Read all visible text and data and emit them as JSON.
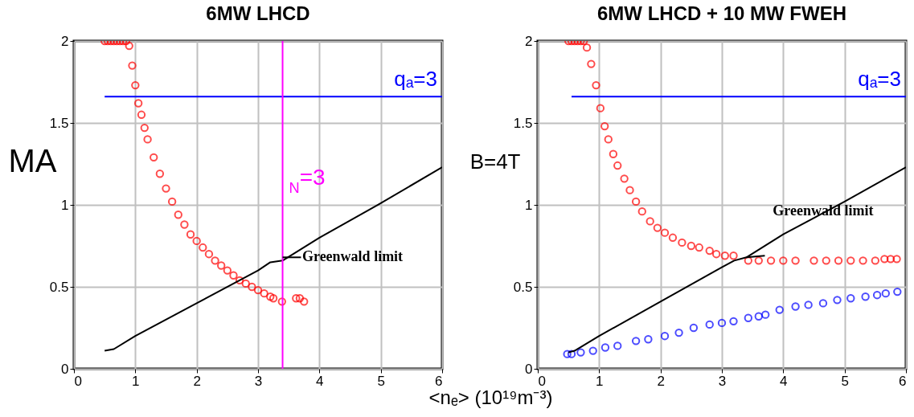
{
  "chart_data": [
    {
      "type": "scatter",
      "title": "6MW LHCD",
      "xlabel": "<nₑ> (10¹⁹m⁻³)",
      "ylabel": "MA",
      "xlim": [
        0,
        6
      ],
      "ylim": [
        0,
        2
      ],
      "xticks": [
        0,
        1,
        2,
        3,
        4,
        5,
        6
      ],
      "yticks": [
        0,
        0.5,
        1,
        1.5,
        2
      ],
      "grid": true,
      "series": [
        {
          "color": "#ff0000",
          "marker": "circle",
          "x": [
            0.5,
            0.55,
            0.6,
            0.65,
            0.7,
            0.75,
            0.8,
            0.85,
            0.9,
            0.95,
            1.0,
            1.05,
            1.1,
            1.15,
            1.2,
            1.3,
            1.4,
            1.5,
            1.6,
            1.7,
            1.8,
            1.9,
            2.0,
            2.1,
            2.2,
            2.3,
            2.4,
            2.5,
            2.6,
            2.7,
            2.8,
            2.9,
            3.0,
            3.1,
            3.2,
            3.25,
            3.39,
            3.62,
            3.68,
            3.75
          ],
          "values": [
            2,
            2,
            2,
            2,
            2,
            2,
            2,
            2,
            1.97,
            1.85,
            1.73,
            1.62,
            1.55,
            1.47,
            1.4,
            1.29,
            1.19,
            1.1,
            1.02,
            0.94,
            0.88,
            0.82,
            0.78,
            0.74,
            0.7,
            0.66,
            0.63,
            0.6,
            0.57,
            0.54,
            0.52,
            0.5,
            0.48,
            0.46,
            0.44,
            0.43,
            0.41,
            0.43,
            0.43,
            0.41
          ]
        },
        {
          "type": "line",
          "name": "qₐ=3",
          "color": "#0000ff",
          "marker": "none",
          "x": [
            0.5,
            6
          ],
          "values": [
            1.66,
            1.66
          ]
        },
        {
          "type": "line",
          "color": "#000000",
          "marker": "none",
          "x": [
            0.5,
            0.65,
            1,
            2,
            3,
            3.2,
            3.4,
            4,
            5,
            6
          ],
          "values": [
            0.11,
            0.12,
            0.2,
            0.4,
            0.6,
            0.65,
            0.66,
            0.8,
            1.01,
            1.23
          ]
        }
      ],
      "ref_lines": [
        {
          "axis": "x",
          "value": 3.4,
          "label": "$_{N}$=3",
          "color": "#ff00ff"
        }
      ],
      "annotations": [
        {
          "text": "Greenwald limit",
          "x": 3.4,
          "y": 0.68
        }
      ]
    },
    {
      "type": "scatter",
      "title": "6MW LHCD + 10 MW FWEH",
      "ylabel": "B=4T",
      "xlim": [
        0,
        6
      ],
      "ylim": [
        0,
        2
      ],
      "xticks": [
        0,
        1,
        2,
        3,
        4,
        5,
        6
      ],
      "yticks": [
        0,
        0.5,
        1,
        1.5,
        2
      ],
      "grid": true,
      "series": [
        {
          "color": "#ff0000",
          "marker": "circle",
          "x": [
            0.5,
            0.55,
            0.6,
            0.65,
            0.7,
            0.75,
            0.8,
            0.87,
            0.95,
            1.02,
            1.09,
            1.15,
            1.23,
            1.3,
            1.41,
            1.5,
            1.6,
            1.7,
            1.83,
            1.95,
            2.07,
            2.2,
            2.35,
            2.5,
            2.63,
            2.8,
            2.91,
            3.05,
            3.19,
            3.43,
            3.6,
            3.8,
            4.0,
            4.2,
            4.5,
            4.7,
            4.9,
            5.1,
            5.3,
            5.5,
            5.65,
            5.75,
            5.85
          ],
          "values": [
            2,
            2,
            2,
            2,
            2,
            2,
            1.96,
            1.86,
            1.73,
            1.59,
            1.48,
            1.4,
            1.31,
            1.24,
            1.16,
            1.09,
            1.02,
            0.96,
            0.9,
            0.86,
            0.83,
            0.8,
            0.77,
            0.75,
            0.74,
            0.72,
            0.7,
            0.69,
            0.69,
            0.66,
            0.66,
            0.66,
            0.66,
            0.66,
            0.66,
            0.66,
            0.66,
            0.66,
            0.66,
            0.66,
            0.67,
            0.67,
            0.67
          ]
        },
        {
          "color": "#0000ff",
          "marker": "circle",
          "x": [
            0.48,
            0.55,
            0.7,
            0.9,
            1.1,
            1.3,
            1.6,
            1.8,
            2.07,
            2.3,
            2.54,
            2.8,
            3.0,
            3.19,
            3.43,
            3.6,
            3.71,
            3.94,
            4.2,
            4.41,
            4.65,
            4.88,
            5.1,
            5.34,
            5.53,
            5.67,
            5.86
          ],
          "values": [
            0.09,
            0.09,
            0.1,
            0.11,
            0.13,
            0.14,
            0.17,
            0.18,
            0.2,
            0.22,
            0.25,
            0.27,
            0.28,
            0.29,
            0.31,
            0.32,
            0.33,
            0.36,
            0.38,
            0.39,
            0.4,
            0.42,
            0.43,
            0.44,
            0.45,
            0.46,
            0.47
          ]
        },
        {
          "type": "line",
          "name": "qₐ=3",
          "color": "#0000ff",
          "marker": "none",
          "x": [
            0.55,
            6
          ],
          "values": [
            1.66,
            1.66
          ]
        },
        {
          "type": "line",
          "color": "#000000",
          "marker": "none",
          "x": [
            0.5,
            0.6,
            1,
            2,
            3,
            3.2,
            3.4,
            4,
            5,
            6
          ],
          "values": [
            0.1,
            0.11,
            0.2,
            0.41,
            0.62,
            0.66,
            0.68,
            0.82,
            1.02,
            1.23
          ]
        }
      ],
      "annotations": [
        {
          "text": "Greenwald limit",
          "x": 4.65,
          "y": 0.96
        }
      ]
    }
  ]
}
